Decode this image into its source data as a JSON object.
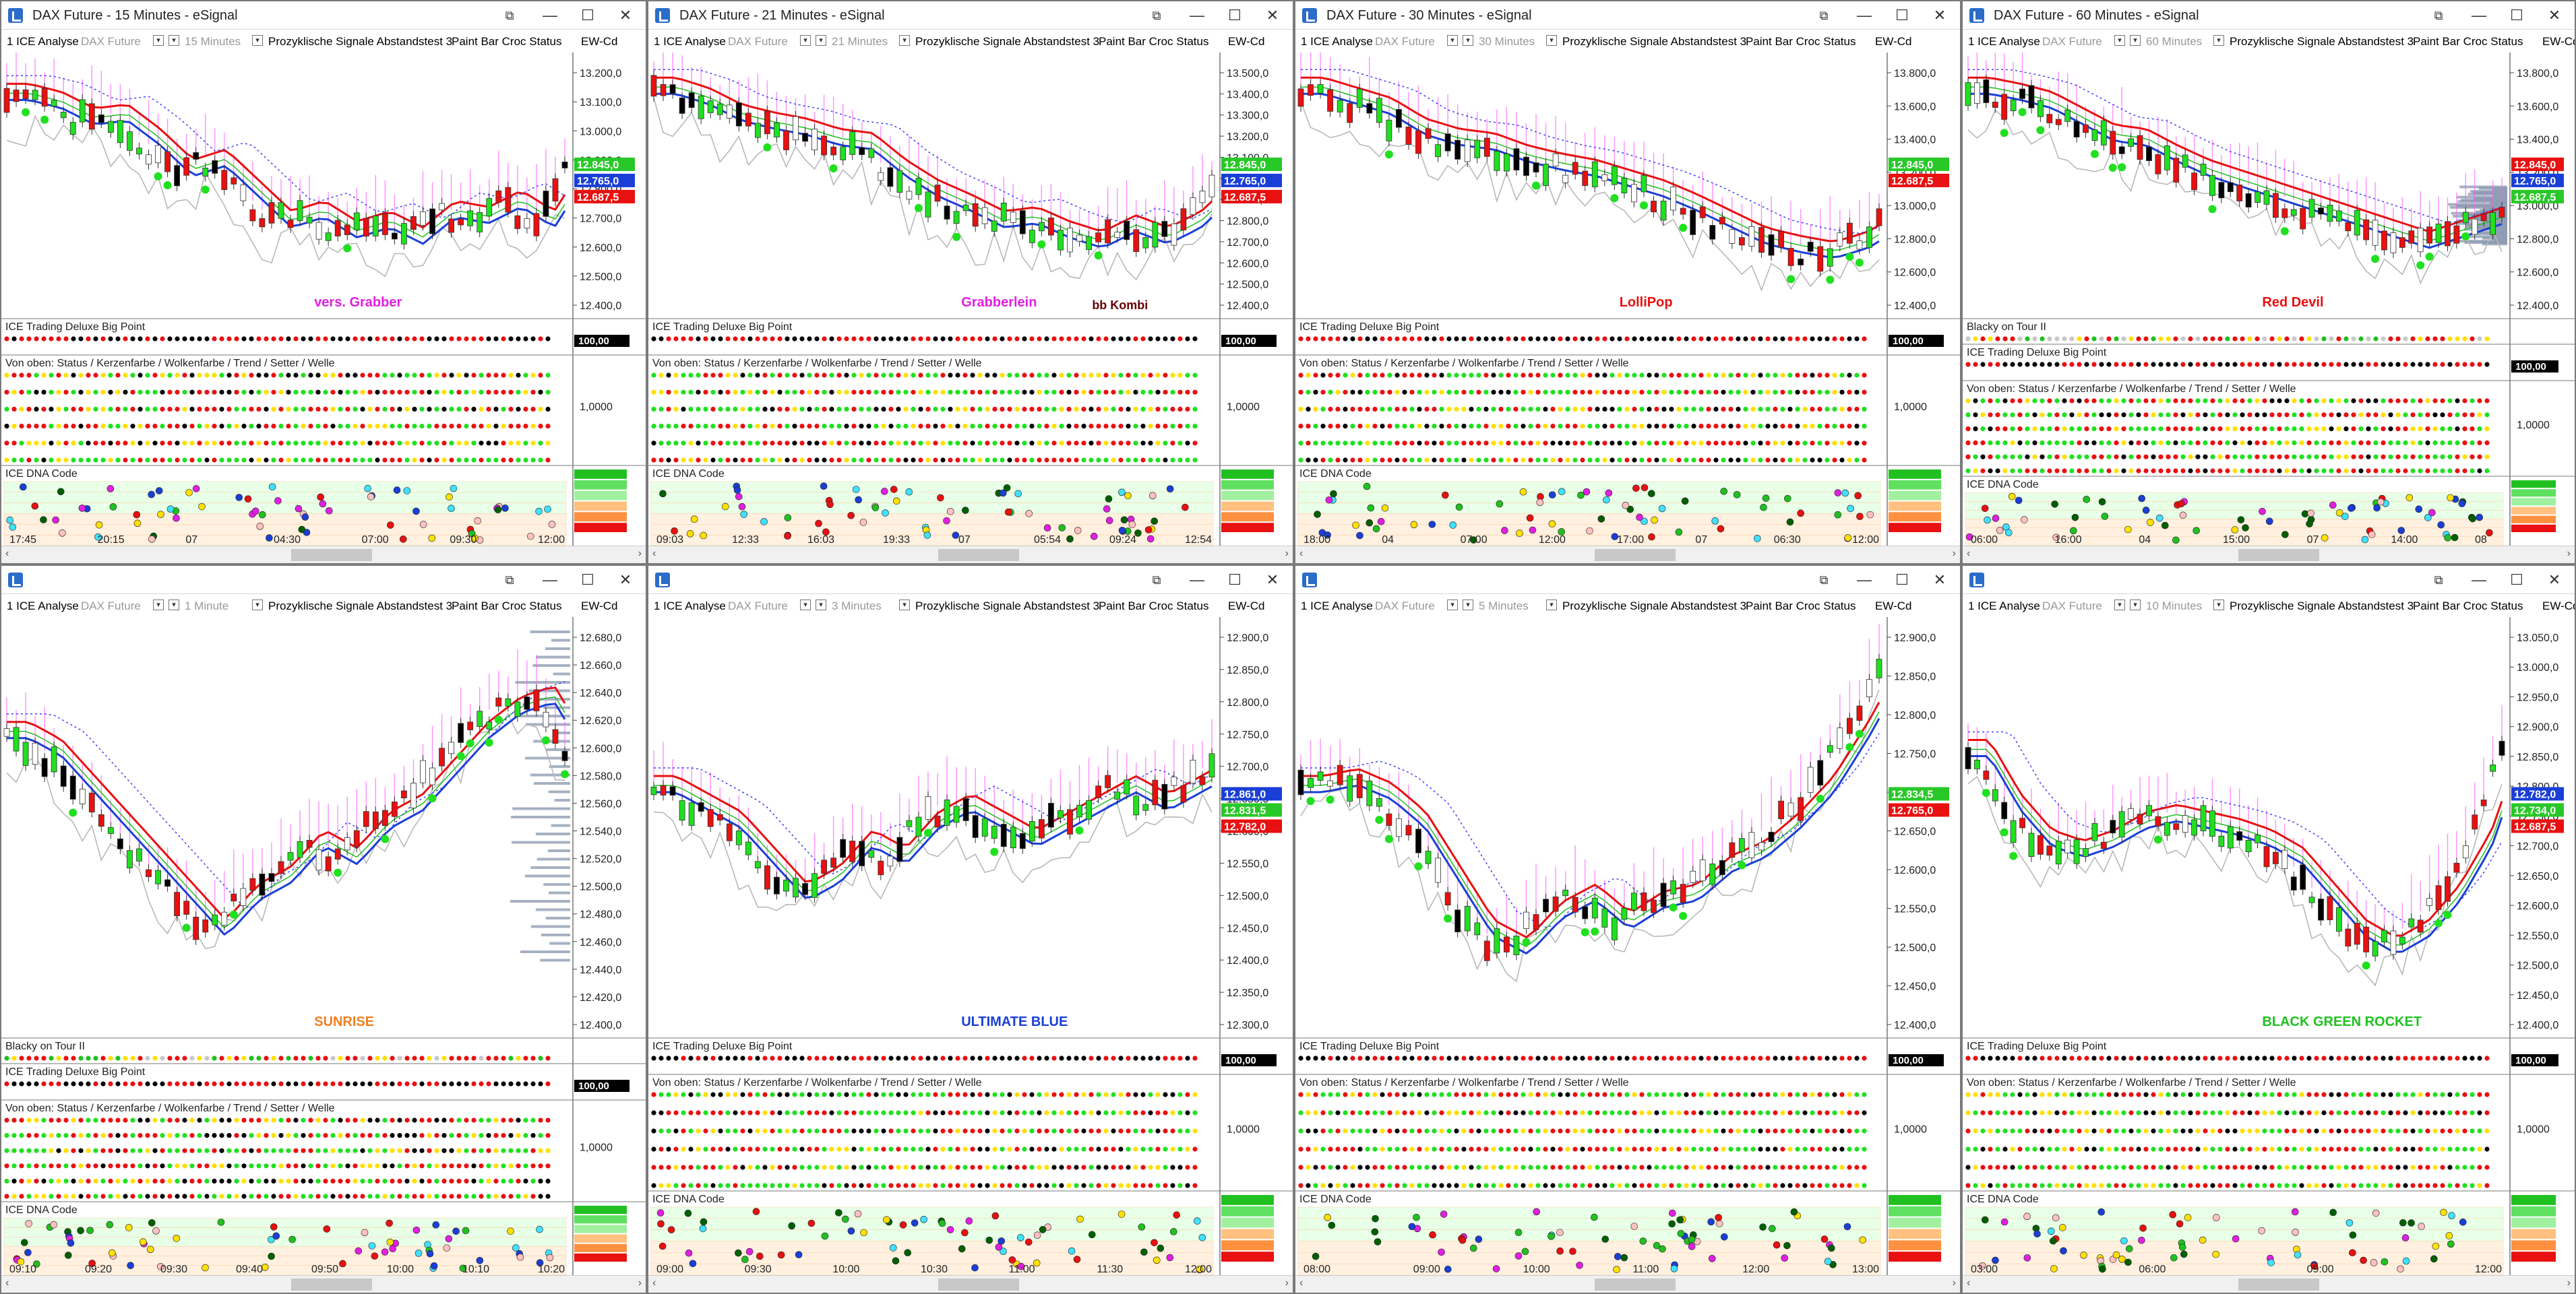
{
  "common": {
    "study": "1 ICE Analyse",
    "symbol": "DAX Future",
    "signals": "Prozyklische Signale Abstandstest 3",
    "paintbar": "Paint Bar Croc Status",
    "ew": "EW-Cd",
    "big_point": "ICE Trading Deluxe Big Point",
    "von_oben": "Von oben: Status / Kerzenfarbe / Wolkenfarbe / Trend / Setter / Welle",
    "dna": "ICE DNA Code",
    "bp_value": "100,00",
    "vo_value": "1,0000"
  },
  "windows": [
    {
      "title": "DAX Future - 15 Minutes - eSignal",
      "interval": "15 Minutes",
      "prices": [
        "13.200,0",
        "13.100,0",
        "13.000,0",
        "12.900,0",
        "12.800,0",
        "12.700,0",
        "12.600,0",
        "12.500,0",
        "12.400,0"
      ],
      "tags": [
        {
          "text": "12.845,0",
          "color": "#28c828"
        },
        {
          "text": "12.765,0",
          "color": "#1a3fd6"
        },
        {
          "text": "12.687,5",
          "color": "#e81010"
        }
      ],
      "times": [
        "17:45",
        "20:15",
        "07",
        "04:30",
        "07:00",
        "09:30",
        "12:00"
      ],
      "annotation": {
        "text": "vers. Grabber",
        "color": "#e020e0"
      },
      "extra": "",
      "trend": [
        0.92,
        0.88,
        0.8,
        0.82,
        0.7,
        0.55,
        0.6,
        0.45,
        0.3,
        0.35,
        0.25,
        0.3,
        0.22,
        0.35,
        0.32,
        0.4,
        0.3,
        0.55
      ]
    },
    {
      "title": "DAX Future - 21 Minutes - eSignal",
      "interval": "21 Minutes",
      "prices": [
        "13.500,0",
        "13.400,0",
        "13.300,0",
        "13.200,0",
        "13.100,0",
        "13.000,0",
        "12.900,0",
        "12.800,0",
        "12.700,0",
        "12.600,0",
        "12.500,0",
        "12.400,0"
      ],
      "tags": [
        {
          "text": "12.845,0",
          "color": "#28c828"
        },
        {
          "text": "12.765,0",
          "color": "#1a3fd6"
        },
        {
          "text": "12.687,5",
          "color": "#e81010"
        }
      ],
      "times": [
        "09:03",
        "12:33",
        "16:03",
        "19:33",
        "07",
        "05:54",
        "09:24",
        "12:54"
      ],
      "annotation": {
        "text": "Grabberlein",
        "color": "#e020e0"
      },
      "extra": "bb Kombi",
      "trend": [
        0.95,
        0.9,
        0.82,
        0.78,
        0.75,
        0.7,
        0.68,
        0.55,
        0.45,
        0.38,
        0.3,
        0.32,
        0.25,
        0.2,
        0.28,
        0.22,
        0.3,
        0.45
      ]
    },
    {
      "title": "DAX Future - 30 Minutes - eSignal",
      "interval": "30 Minutes",
      "prices": [
        "13.800,0",
        "13.600,0",
        "13.400,0",
        "13.200,0",
        "13.000,0",
        "12.800,0",
        "12.600,0",
        "12.400,0"
      ],
      "tags": [
        {
          "text": "12.845,0",
          "color": "#28c828"
        },
        {
          "text": "12.687,5",
          "color": "#e81010"
        }
      ],
      "times": [
        "18:00",
        "04",
        "07:00",
        "12:00",
        "17:00",
        "07",
        "06:30",
        "12:00"
      ],
      "annotation": {
        "text": "LolliPop",
        "color": "#e81010"
      },
      "extra": "",
      "trend": [
        0.95,
        0.9,
        0.85,
        0.75,
        0.7,
        0.68,
        0.62,
        0.58,
        0.55,
        0.5,
        0.45,
        0.38,
        0.3,
        0.22,
        0.18,
        0.15,
        0.2,
        0.3
      ]
    },
    {
      "title": "DAX Future - 60 Minutes - eSignal",
      "interval": "60 Minutes",
      "prices": [
        "13.800,0",
        "13.600,0",
        "13.400,0",
        "13.200,0",
        "13.000,0",
        "12.800,0",
        "12.600,0",
        "12.400,0"
      ],
      "tags": [
        {
          "text": "12.845,0",
          "color": "#e81010"
        },
        {
          "text": "12.765,0",
          "color": "#1a3fd6"
        },
        {
          "text": "12.687,5",
          "color": "#28c828"
        }
      ],
      "times": [
        "06:00",
        "16:00",
        "04",
        "15:00",
        "07",
        "14:00",
        "08"
      ],
      "annotation": {
        "text": "Red Devil",
        "color": "#e81010"
      },
      "extra": "Blacky on Tour II",
      "trend": [
        0.95,
        0.92,
        0.88,
        0.8,
        0.72,
        0.7,
        0.62,
        0.55,
        0.5,
        0.45,
        0.4,
        0.35,
        0.3,
        0.25,
        0.2,
        0.25,
        0.3,
        0.35
      ]
    },
    {
      "title": "",
      "interval": "1 Minute",
      "prices": [
        "12.680,0",
        "12.660,0",
        "12.640,0",
        "12.620,0",
        "12.600,0",
        "12.580,0",
        "12.560,0",
        "12.540,0",
        "12.520,0",
        "12.500,0",
        "12.480,0",
        "12.460,0",
        "12.440,0",
        "12.420,0",
        "12.400,0"
      ],
      "tags": [],
      "times": [
        "09:10",
        "09:20",
        "09:30",
        "09:40",
        "09:50",
        "10:00",
        "10:10",
        "10:20"
      ],
      "annotation": {
        "text": "SUNRISE",
        "color": "#f08020"
      },
      "extra": "Blacky on Tour II",
      "trend": [
        0.75,
        0.7,
        0.6,
        0.5,
        0.4,
        0.3,
        0.2,
        0.3,
        0.35,
        0.45,
        0.4,
        0.5,
        0.55,
        0.65,
        0.75,
        0.82,
        0.85,
        0.7
      ]
    },
    {
      "title": "",
      "interval": "3 Minutes",
      "prices": [
        "12.900,0",
        "12.850,0",
        "12.800,0",
        "12.750,0",
        "12.700,0",
        "12.650,0",
        "12.600,0",
        "12.550,0",
        "12.500,0",
        "12.450,0",
        "12.400,0",
        "12.350,0",
        "12.300,0"
      ],
      "tags": [
        {
          "text": "12.861,0",
          "color": "#1a3fd6"
        },
        {
          "text": "12.831,5",
          "color": "#28c828"
        },
        {
          "text": "12.782,0",
          "color": "#e81010"
        }
      ],
      "times": [
        "09:00",
        "09:30",
        "10:00",
        "10:30",
        "11:00",
        "11:30",
        "12:00"
      ],
      "annotation": {
        "text": "ULTIMATE BLUE",
        "color": "#1a3fd6"
      },
      "extra": "",
      "trend": [
        0.6,
        0.55,
        0.5,
        0.4,
        0.3,
        0.35,
        0.45,
        0.4,
        0.5,
        0.55,
        0.5,
        0.45,
        0.5,
        0.55,
        0.6,
        0.55,
        0.6,
        0.65
      ]
    },
    {
      "title": "",
      "interval": "5 Minutes",
      "prices": [
        "12.900,0",
        "12.850,0",
        "12.800,0",
        "12.750,0",
        "12.700,0",
        "12.650,0",
        "12.600,0",
        "12.550,0",
        "12.500,0",
        "12.450,0",
        "12.400,0"
      ],
      "tags": [
        {
          "text": "12.834,5",
          "color": "#28c828"
        },
        {
          "text": "12.765,0",
          "color": "#e81010"
        }
      ],
      "times": [
        "08:00",
        "09:00",
        "10:00",
        "11:00",
        "12:00",
        "13:00"
      ],
      "annotation": {
        "text": "",
        "color": "#000"
      },
      "extra": "",
      "trend": [
        0.6,
        0.62,
        0.58,
        0.5,
        0.35,
        0.2,
        0.15,
        0.25,
        0.3,
        0.22,
        0.28,
        0.3,
        0.38,
        0.42,
        0.5,
        0.6,
        0.75,
        0.92
      ]
    },
    {
      "title": "",
      "interval": "10 Minutes",
      "prices": [
        "13.050,0",
        "13.000,0",
        "12.950,0",
        "12.900,0",
        "12.850,0",
        "12.800,0",
        "12.750,0",
        "12.700,0",
        "12.650,0",
        "12.600,0",
        "12.550,0",
        "12.500,0",
        "12.450,0",
        "12.400,0"
      ],
      "tags": [
        {
          "text": "12.782,0",
          "color": "#1a3fd6"
        },
        {
          "text": "12.734,0",
          "color": "#28c828"
        },
        {
          "text": "12.687,5",
          "color": "#e81010"
        }
      ],
      "times": [
        "03:00",
        "06:00",
        "09:00",
        "12:00"
      ],
      "annotation": {
        "text": "BLACK GREEN ROCKET",
        "color": "#20c020"
      },
      "extra": "",
      "trend": [
        0.7,
        0.55,
        0.45,
        0.42,
        0.45,
        0.5,
        0.52,
        0.5,
        0.48,
        0.45,
        0.4,
        0.3,
        0.2,
        0.15,
        0.2,
        0.3,
        0.45,
        0.7
      ]
    }
  ]
}
